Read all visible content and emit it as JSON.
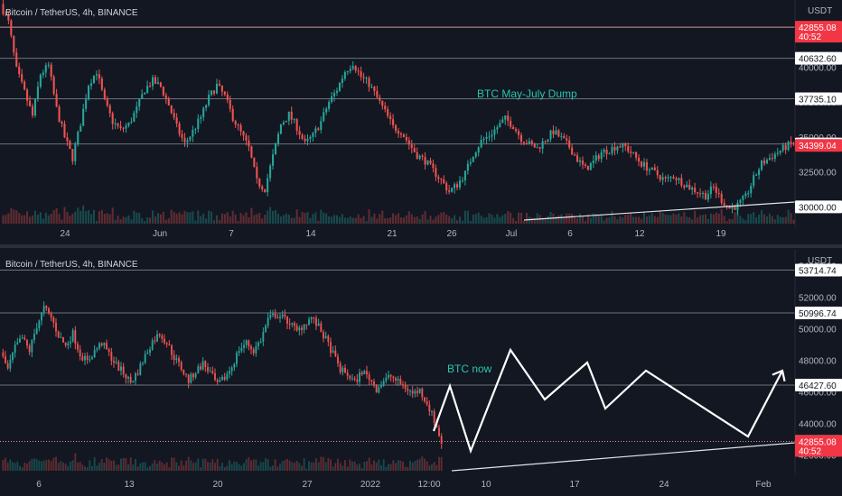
{
  "chart_data": [
    {
      "type": "candlestick",
      "symbol_label": "Bitcoin / TetherUS, 4h, BINANCE",
      "currency": "USDT",
      "annotation": "BTC May-July Dump",
      "x_ticks": [
        "24",
        "Jun",
        "7",
        "14",
        "21",
        "26",
        "Jul",
        "6",
        "12",
        "19"
      ],
      "y_range": [
        28800,
        44800
      ],
      "axis_ticks": [
        42500,
        40000,
        37500,
        35000,
        32500,
        30000
      ],
      "horizontal_levels": [
        42855.08,
        40632.6,
        37735.1,
        34503.27
      ],
      "price_labels": [
        {
          "text": "42855.08",
          "sub": "40:52",
          "value": 42855.08,
          "color": "#f23645"
        },
        {
          "text": "40632.60",
          "value": 40632.6,
          "color": "#ffffff"
        },
        {
          "text": "37735.10",
          "value": 37735.1,
          "color": "#ffffff"
        },
        {
          "text": "34503.27",
          "value": 34503.27,
          "color": "#ffffff"
        },
        {
          "text": "34399.04",
          "value": 34399.04,
          "color": "#f23645"
        },
        {
          "text": "30000.00",
          "value": 30000.0,
          "color": "#ffffff"
        }
      ],
      "price_path": [
        44500,
        43200,
        39800,
        38200,
        36500,
        39500,
        40100,
        37000,
        35000,
        33500,
        36000,
        38800,
        39700,
        37500,
        36100,
        35500,
        35900,
        37000,
        38400,
        39000,
        38600,
        37300,
        35700,
        34500,
        35400,
        36400,
        37800,
        38700,
        37900,
        36400,
        35300,
        34200,
        31800,
        31300,
        33600,
        35900,
        36600,
        35700,
        34500,
        35100,
        36100,
        37500,
        38400,
        39700,
        40300,
        39300,
        38800,
        37800,
        36800,
        35700,
        35400,
        34500,
        33700,
        33300,
        32600,
        31900,
        31100,
        31600,
        32400,
        33800,
        34700,
        35100,
        35700,
        36300,
        35800,
        34900,
        34500,
        34200,
        34800,
        35400,
        34900,
        34300,
        33400,
        32700,
        33200,
        33900,
        34100,
        34400,
        34300,
        33700,
        33100,
        32700,
        32300,
        31900,
        32200,
        31800,
        31400,
        31100,
        30800,
        31400,
        30500,
        29900,
        30100,
        30700,
        32000,
        33100,
        33500,
        33900,
        34300,
        34600
      ],
      "trend_line": [
        [
          580,
          244
        ],
        [
          880,
          224
        ]
      ]
    },
    {
      "type": "candlestick",
      "symbol_label": "Bitcoin / TetherUS, 4h, BINANCE",
      "currency": "USDT",
      "annotation": "BTC now",
      "x_ticks": [
        "6",
        "13",
        "20",
        "27",
        "2022",
        "12:00",
        "10",
        "17",
        "24",
        "Feb"
      ],
      "y_range": [
        41000,
        55000
      ],
      "axis_ticks": [
        54000,
        52000,
        50000,
        48000,
        46000,
        44000,
        42000
      ],
      "horizontal_levels": [
        53714.74,
        50996.74,
        46427.6,
        42855.08
      ],
      "price_labels": [
        {
          "text": "53714.74",
          "value": 53714.74,
          "color": "#ffffff"
        },
        {
          "text": "50996.74",
          "value": 50996.74,
          "color": "#ffffff"
        },
        {
          "text": "46427.60",
          "value": 46427.6,
          "color": "#ffffff"
        },
        {
          "text": "42861.45",
          "value": 42861.45,
          "color": "#ffffff"
        },
        {
          "text": "42855.08",
          "sub": "40:52",
          "value": 42855.08,
          "color": "#f23645"
        }
      ],
      "price_path": [
        48500,
        47400,
        48800,
        49400,
        48600,
        50200,
        51300,
        50700,
        49600,
        48900,
        49700,
        48400,
        47900,
        48600,
        49100,
        48400,
        47700,
        47200,
        46600,
        47300,
        48300,
        49200,
        49700,
        49100,
        48200,
        47500,
        46700,
        47300,
        47800,
        47200,
        46400,
        46900,
        47600,
        48700,
        49100,
        48600,
        49300,
        50600,
        50900,
        50700,
        50400,
        49800,
        50300,
        50700,
        50100,
        49300,
        48400,
        47400,
        47100,
        46600,
        47300,
        46900,
        46200,
        46700,
        47000,
        46600,
        46300,
        45900,
        46100,
        45300,
        44200,
        42800
      ],
      "projection_path": [
        [
          480,
          478
        ],
        [
          498,
          428
        ],
        [
          521,
          500
        ],
        [
          565,
          388
        ],
        [
          603,
          443
        ],
        [
          650,
          402
        ],
        [
          670,
          453
        ],
        [
          715,
          411
        ],
        [
          828,
          484
        ],
        [
          866,
          411
        ]
      ],
      "trend_line": [
        [
          500,
          522
        ],
        [
          880,
          491
        ]
      ]
    }
  ]
}
